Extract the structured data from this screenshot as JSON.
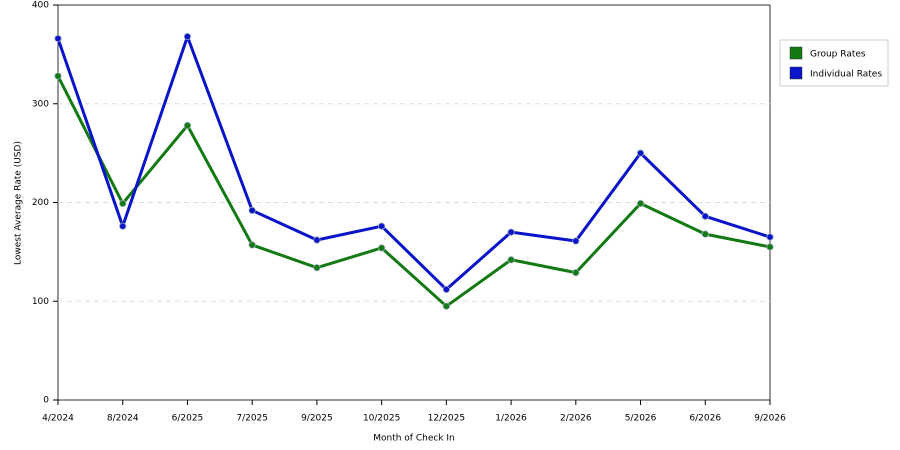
{
  "chart_data": {
    "type": "line",
    "x_label": "Month of Check In",
    "y_label": "Lowest Average Rate (USD)",
    "categories": [
      "4/2024",
      "8/2024",
      "6/2025",
      "7/2025",
      "9/2025",
      "10/2025",
      "12/2025",
      "1/2026",
      "2/2026",
      "5/2026",
      "6/2026",
      "9/2026"
    ],
    "series": [
      {
        "name": "Group Rates",
        "color": "#137a13",
        "values": [
          328,
          199,
          278,
          157,
          134,
          154,
          95,
          142,
          129,
          199,
          168,
          155
        ]
      },
      {
        "name": "Individual Rates",
        "color": "#0a14c8",
        "values": [
          366,
          176,
          368,
          192,
          162,
          176,
          112,
          170,
          161,
          250,
          186,
          165
        ]
      }
    ],
    "ylim": [
      0,
      400
    ],
    "yticks": [
      0,
      100,
      200,
      300,
      400
    ],
    "grid": true,
    "legend": "right"
  }
}
